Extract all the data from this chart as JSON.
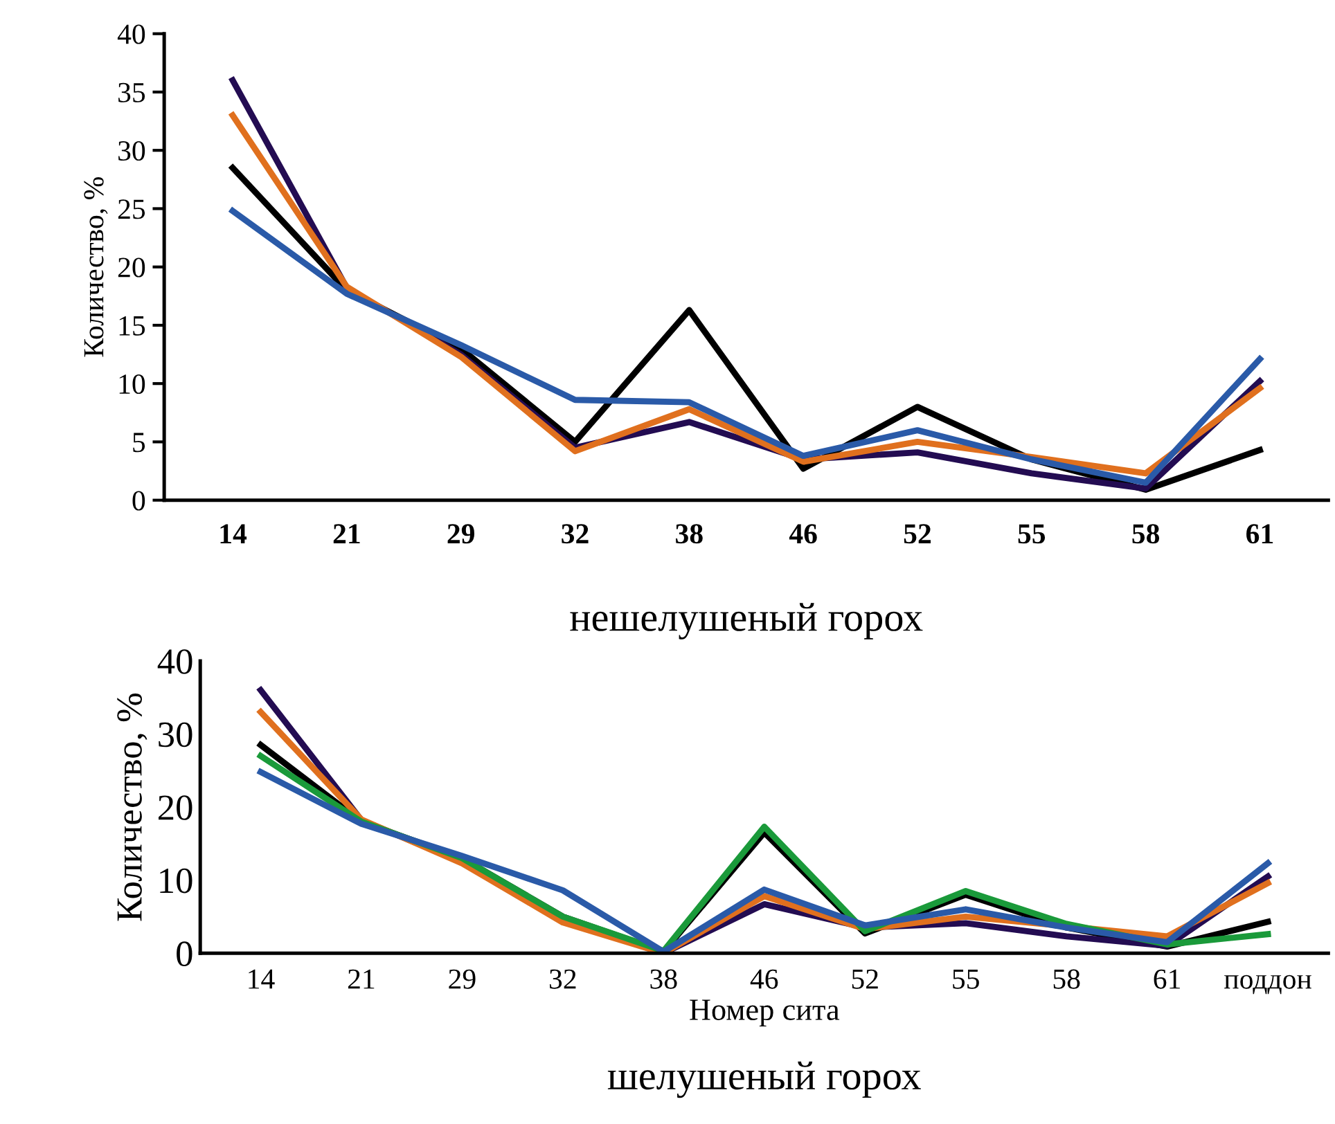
{
  "chart_data": [
    {
      "type": "line",
      "title": "нешелушеный горох",
      "ylabel": "Количество, %",
      "categories": [
        "14",
        "21",
        "29",
        "32",
        "38",
        "46",
        "52",
        "55",
        "58",
        "61"
      ],
      "ylim": [
        0,
        40
      ],
      "yticks": [
        0,
        5,
        10,
        15,
        20,
        25,
        30,
        35,
        40
      ],
      "grid": false,
      "legend": false,
      "marker": "none",
      "line_style": "solid",
      "series": [
        {
          "color": "#000000",
          "values": [
            28.5,
            18,
            13,
            5,
            16.3,
            2.7,
            8,
            3.5,
            0.9,
            4.3
          ]
        },
        {
          "color": "#230c52",
          "values": [
            36,
            18.2,
            12.5,
            4.5,
            6.7,
            3.5,
            4.1,
            2.3,
            1.0,
            10.2
          ]
        },
        {
          "color": "#e0701e",
          "values": [
            33,
            18.3,
            12.3,
            4.2,
            7.8,
            3.3,
            5.0,
            3.7,
            2.3,
            9.6
          ]
        },
        {
          "color": "#2a5aa8",
          "values": [
            24.8,
            17.7,
            13.3,
            8.6,
            8.4,
            3.8,
            6.0,
            3.5,
            1.5,
            12.1
          ]
        }
      ]
    },
    {
      "type": "line",
      "title": "шелушеный горох",
      "xlabel": "Номер сита",
      "ylabel": "Количество, %",
      "categories": [
        "14",
        "21",
        "29",
        "32",
        "38",
        "46",
        "52",
        "55",
        "58",
        "61",
        "поддон"
      ],
      "ylim": [
        0,
        40
      ],
      "yticks": [
        0,
        10,
        20,
        30,
        40
      ],
      "grid": false,
      "legend": false,
      "marker": "none",
      "line_style": "solid",
      "series": [
        {
          "color": "#000000",
          "values": [
            28.5,
            18,
            13,
            5,
            0.2,
            16.5,
            2.7,
            8,
            3.5,
            0.9,
            4.3
          ]
        },
        {
          "color": "#230c52",
          "values": [
            36,
            18.2,
            12.5,
            4.5,
            0,
            6.7,
            3.5,
            4.1,
            2.3,
            1.0,
            10.5
          ]
        },
        {
          "color": "#e0701e",
          "values": [
            33,
            18.3,
            12.3,
            4.2,
            0,
            7.8,
            3.3,
            5.0,
            3.7,
            2.3,
            9.6
          ]
        },
        {
          "color": "#1a9a3a",
          "values": [
            27,
            18,
            13,
            5,
            0.3,
            17.3,
            3,
            8.5,
            4,
            1.2,
            2.6
          ]
        },
        {
          "color": "#2a5aa8",
          "values": [
            24.8,
            17.7,
            13.3,
            8.6,
            0.2,
            8.7,
            3.8,
            6.0,
            3.5,
            1.5,
            12.3
          ]
        }
      ]
    }
  ]
}
